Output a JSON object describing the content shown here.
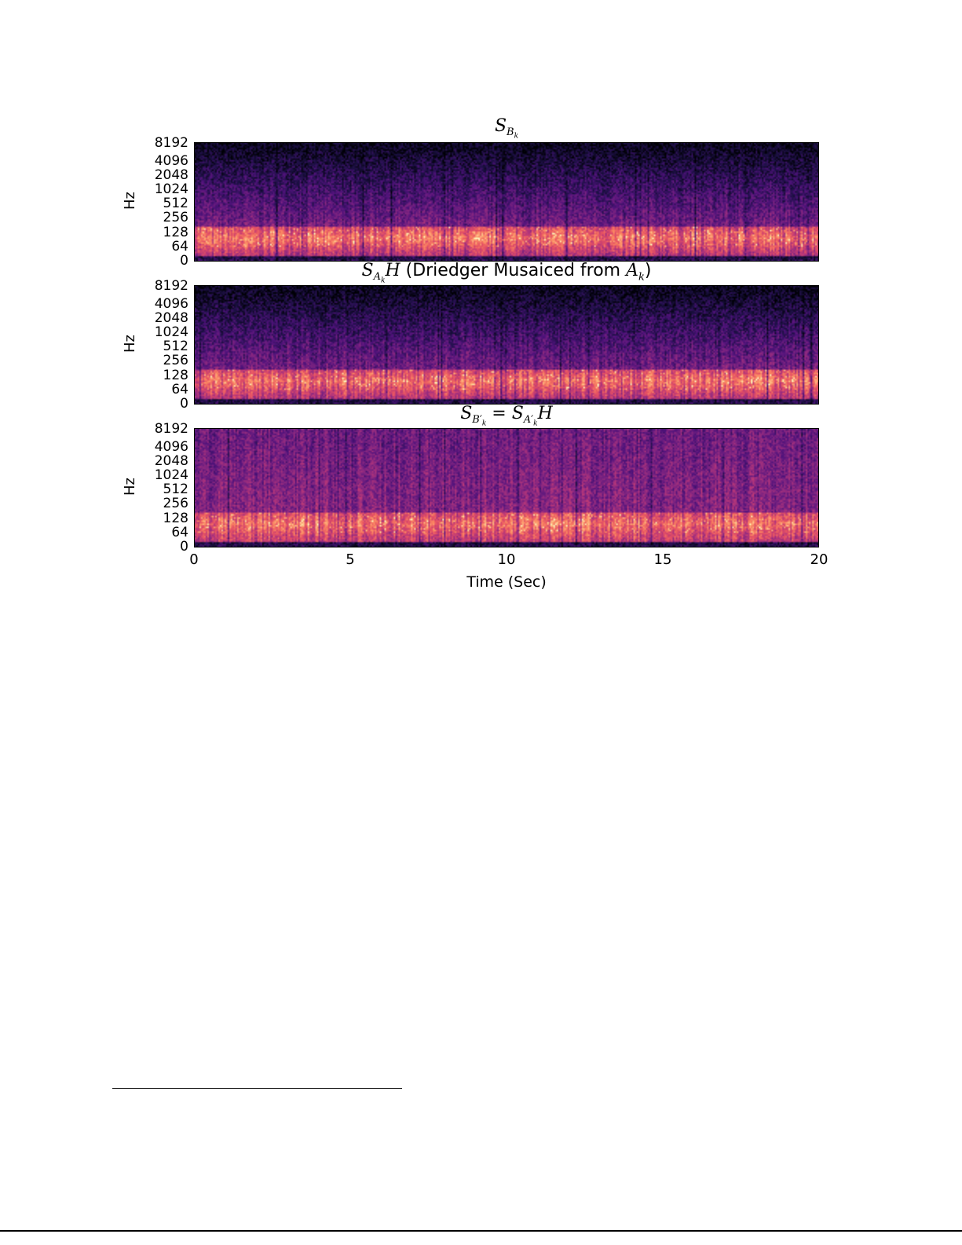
{
  "chart_data": [
    {
      "type": "heatmap",
      "title": "S_{B_k}",
      "title_parts": {
        "main": "S",
        "sub": "B",
        "subsub": "k"
      },
      "ylabel": "Hz",
      "xlabel": "",
      "yticks": [
        "0",
        "64",
        "128",
        "256",
        "512",
        "1024",
        "2048",
        "4096",
        "8192"
      ],
      "xlim": [
        0,
        20
      ],
      "colormap": "magma"
    },
    {
      "type": "heatmap",
      "title": "S_{A_k}H (Driedger Musaiced from A_k)",
      "title_parts": {
        "pre": "S",
        "sub": "A",
        "subsub": "k",
        "h": "H",
        "text": " (Driedger Musaiced from ",
        "a": "A",
        "asub": "k",
        "close": ")"
      },
      "ylabel": "Hz",
      "xlabel": "",
      "yticks": [
        "0",
        "64",
        "128",
        "256",
        "512",
        "1024",
        "2048",
        "4096",
        "8192"
      ],
      "xlim": [
        0,
        20
      ],
      "colormap": "magma"
    },
    {
      "type": "heatmap",
      "title": "S_{B'_k} = S_{A'_k}H",
      "title_parts": {
        "s1": "S",
        "sub1": "B′",
        "k1": "k",
        "eq": " = ",
        "s2": "S",
        "sub2": "A′",
        "k2": "k",
        "h": "H"
      },
      "ylabel": "Hz",
      "xlabel": "Time (Sec)",
      "yticks": [
        "0",
        "64",
        "128",
        "256",
        "512",
        "1024",
        "2048",
        "4096",
        "8192"
      ],
      "xticks": [
        "0",
        "5",
        "10",
        "15",
        "20"
      ],
      "xlim": [
        0,
        20
      ],
      "colormap": "magma"
    }
  ]
}
